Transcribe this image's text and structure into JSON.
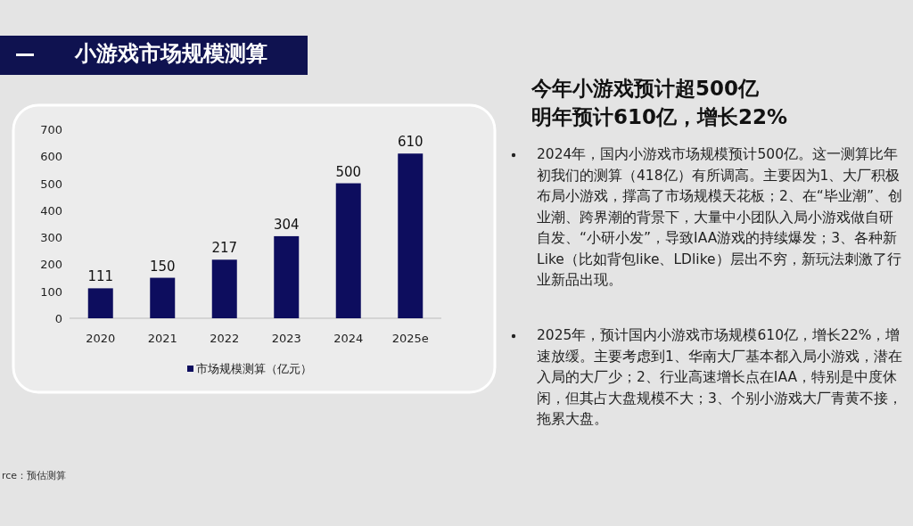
{
  "chart_data": {
    "type": "bar",
    "title": "小游戏市场规模测算",
    "subtitle": "今年小游戏预计超500亿",
    "categories": [
      "2020",
      "2021",
      "2022",
      "2023",
      "2024",
      "2025e"
    ],
    "series": [
      {
        "name": "市场规模测算（亿元）",
        "color": "#0d0d5e",
        "values": [
          111,
          150,
          217,
          304,
          500,
          610
        ]
      }
    ],
    "ylim": [
      0,
      700
    ],
    "yticks": [
      0,
      100,
      200,
      300,
      400,
      500,
      600,
      700
    ],
    "data_labels": true,
    "legend": "bottom",
    "grid": false,
    "annotations": [
      "明年预计610亿，增长22%",
      "2024年，国内小游戏市场规模预计500亿。这一测算比年初我们的测算（418亿）有所调高。主要因为1、大厂积极布局小游戏，撑高了市场规模天花板；2、在“毕业潮”、创业潮、跨界潮的背景下，大量中小团队入局小游戏做自研自发、“小研小发”，导致IAA游戏的持续爆发；3、各种新Like（比如背包like、LDlike）层出不穷，新玩法刺激了行业新品出现。",
      "2025年，预计国内小游戏市场规模610亿，增长22%，增速放缓。主要考虑到1、华南大厂基本都入局小游戏，潜在入局的大厂少；2、行业高速增长点在IAA，特别是中度休闲，但其占大盘规模不大；3、个别小游戏大厂青黄不接，拖累大盘。",
      "rce：预估测算"
    ]
  }
}
